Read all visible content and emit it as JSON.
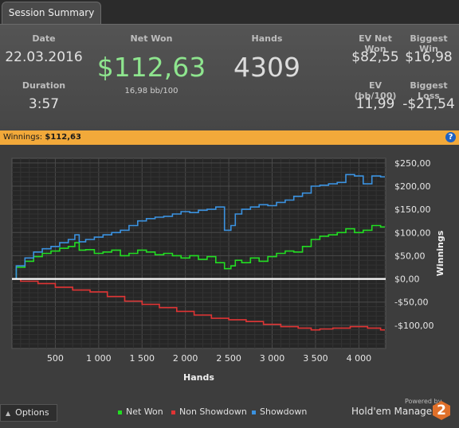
{
  "tab": {
    "label": "Session Summary"
  },
  "summary": {
    "date_label": "Date",
    "date_value": "22.03.2016",
    "duration_label": "Duration",
    "duration_value": "3:57",
    "net_won_label": "Net Won",
    "net_won_value": "$112,63",
    "net_won_bb": "16,98 bb/100",
    "hands_label": "Hands",
    "hands_value": "4309",
    "ev_net_won_label": "EV Net Won",
    "ev_net_won_value": "$82,55",
    "biggest_win_label": "Biggest Win",
    "biggest_win_value": "$16,98",
    "ev_bb_label": "EV (bb/100)",
    "ev_bb_value": "11,99",
    "biggest_loss_label": "Biggest Loss",
    "biggest_loss_value": "-$21,54"
  },
  "winnings_bar": {
    "label": "Winnings:",
    "value": "$112,63",
    "help": "?"
  },
  "chart_data": {
    "type": "line",
    "xlabel": "Hands",
    "ylabel": "Winnings",
    "xlim": [
      0,
      4309
    ],
    "ylim": [
      -150,
      260
    ],
    "x_ticks": [
      500,
      1000,
      1500,
      2000,
      2500,
      3000,
      3500,
      4000
    ],
    "x_tick_labels": [
      "500",
      "1 000",
      "1 500",
      "2 000",
      "2 500",
      "3 000",
      "3 500",
      "4 000"
    ],
    "y_ticks": [
      250,
      200,
      150,
      100,
      50,
      0,
      -50,
      -100
    ],
    "y_tick_labels": [
      "$250,00",
      "$200,00",
      "$150,00",
      "$100,00",
      "$50,00",
      "$0,00",
      "-$50,00",
      "-$100,00"
    ],
    "grid": true,
    "legend_placement": "bottom",
    "series": [
      {
        "name": "Net Won",
        "color": "#22dd22",
        "x": [
          0,
          100,
          200,
          300,
          400,
          500,
          600,
          700,
          750,
          800,
          900,
          1000,
          1100,
          1200,
          1300,
          1400,
          1500,
          1600,
          1700,
          1800,
          1900,
          2000,
          2100,
          2200,
          2300,
          2400,
          2500,
          2550,
          2600,
          2700,
          2800,
          2900,
          3000,
          3100,
          3200,
          3300,
          3400,
          3500,
          3600,
          3700,
          3800,
          3900,
          4000,
          4100,
          4200,
          4300
        ],
        "y": [
          0,
          25,
          38,
          48,
          55,
          60,
          66,
          70,
          78,
          62,
          63,
          55,
          58,
          62,
          50,
          55,
          62,
          58,
          52,
          55,
          50,
          45,
          50,
          42,
          48,
          35,
          22,
          28,
          40,
          35,
          45,
          38,
          48,
          55,
          60,
          58,
          70,
          85,
          92,
          95,
          100,
          108,
          100,
          105,
          115,
          112
        ]
      },
      {
        "name": "Non Showdown",
        "color": "#e03434",
        "x": [
          0,
          200,
          400,
          600,
          800,
          1000,
          1200,
          1400,
          1600,
          1800,
          2000,
          2200,
          2400,
          2600,
          2800,
          3000,
          3200,
          3400,
          3500,
          3600,
          3800,
          4000,
          4200,
          4300
        ],
        "y": [
          0,
          -5,
          -10,
          -18,
          -24,
          -28,
          -38,
          -48,
          -55,
          -62,
          -70,
          -78,
          -85,
          -88,
          -92,
          -98,
          -103,
          -106,
          -110,
          -108,
          -106,
          -103,
          -106,
          -110
        ]
      },
      {
        "name": "Showdown",
        "color": "#3b92e0",
        "x": [
          0,
          100,
          200,
          300,
          400,
          500,
          600,
          700,
          750,
          800,
          900,
          1000,
          1100,
          1200,
          1300,
          1400,
          1500,
          1600,
          1700,
          1800,
          1900,
          2000,
          2100,
          2200,
          2300,
          2400,
          2500,
          2550,
          2600,
          2700,
          2800,
          2900,
          3000,
          3100,
          3200,
          3300,
          3400,
          3500,
          3600,
          3700,
          3800,
          3900,
          4000,
          4100,
          4200,
          4300
        ],
        "y": [
          0,
          28,
          45,
          58,
          65,
          70,
          78,
          85,
          95,
          80,
          85,
          90,
          95,
          100,
          105,
          115,
          125,
          130,
          133,
          135,
          140,
          145,
          143,
          148,
          150,
          155,
          105,
          115,
          140,
          150,
          155,
          160,
          158,
          165,
          170,
          178,
          185,
          200,
          202,
          205,
          208,
          225,
          222,
          205,
          222,
          220
        ]
      },
      {
        "name": "",
        "color": "#ffffff",
        "x": [
          0,
          4309
        ],
        "y": [
          0,
          0
        ]
      }
    ]
  },
  "options": {
    "label": "Options"
  },
  "brand": {
    "powered": "Powered by",
    "name": "Hold'em Manager",
    "version": "2"
  }
}
